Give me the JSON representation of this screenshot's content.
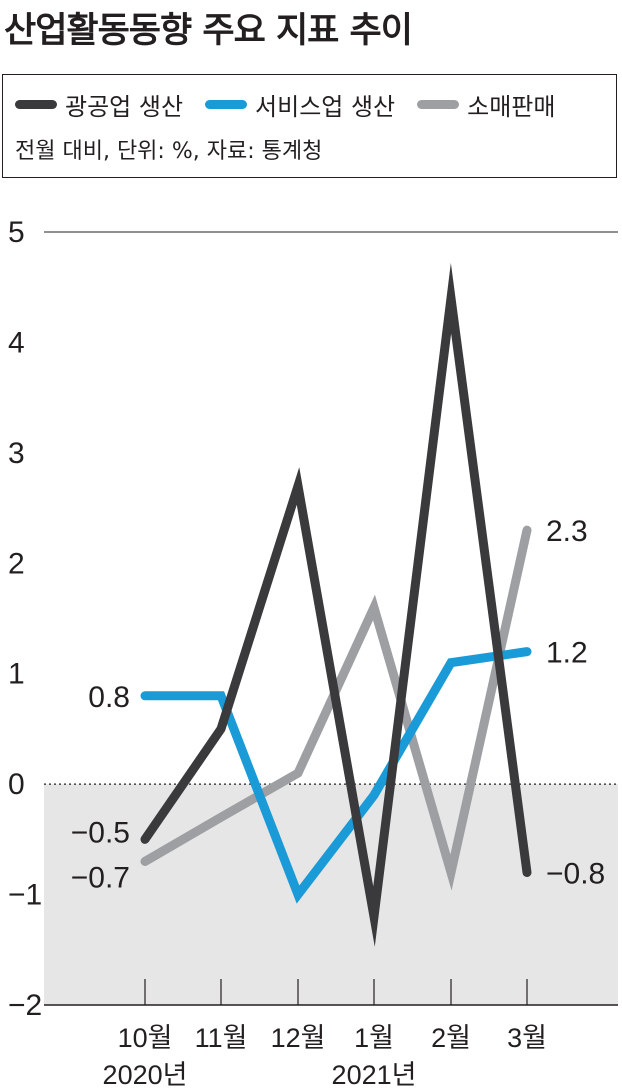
{
  "title": "산업활동동향 주요 지표 추이",
  "legend_note": "전월 대비, 단위: %, 자료: 통계청",
  "chart_data": {
    "type": "line",
    "x": [
      "10월",
      "11월",
      "12월",
      "1월",
      "2월",
      "3월"
    ],
    "year_labels": [
      {
        "text": "2020년",
        "at": "10월"
      },
      {
        "text": "2021년",
        "at": "1월"
      }
    ],
    "ylim": [
      -2,
      5
    ],
    "yticks": [
      -2,
      -1,
      0,
      1,
      2,
      3,
      4,
      5
    ],
    "ytick_labels": [
      "−2",
      "−1",
      "0",
      "1",
      "2",
      "3",
      "4",
      "5"
    ],
    "series": [
      {
        "name": "광공업 생산",
        "color": "#3a3a3c",
        "values": [
          -0.5,
          0.5,
          2.7,
          -1.2,
          4.4,
          -0.8
        ],
        "labels": {
          "first": "−0.5",
          "last": "−0.8"
        }
      },
      {
        "name": "서비스업 생산",
        "color": "#1a9ad6",
        "values": [
          0.8,
          0.8,
          -1.0,
          -0.1,
          1.1,
          1.2
        ],
        "labels": {
          "first": "0.8",
          "last": "1.2"
        }
      },
      {
        "name": "소매판매",
        "color": "#9d9fa2",
        "values": [
          -0.7,
          -0.3,
          0.1,
          1.6,
          -0.8,
          2.3
        ],
        "labels": {
          "first": "−0.7",
          "last": "2.3"
        }
      }
    ],
    "colors": {
      "negative_area": "#e6e6e7",
      "zero_line": "#231f20",
      "grid": "#231f20"
    }
  }
}
